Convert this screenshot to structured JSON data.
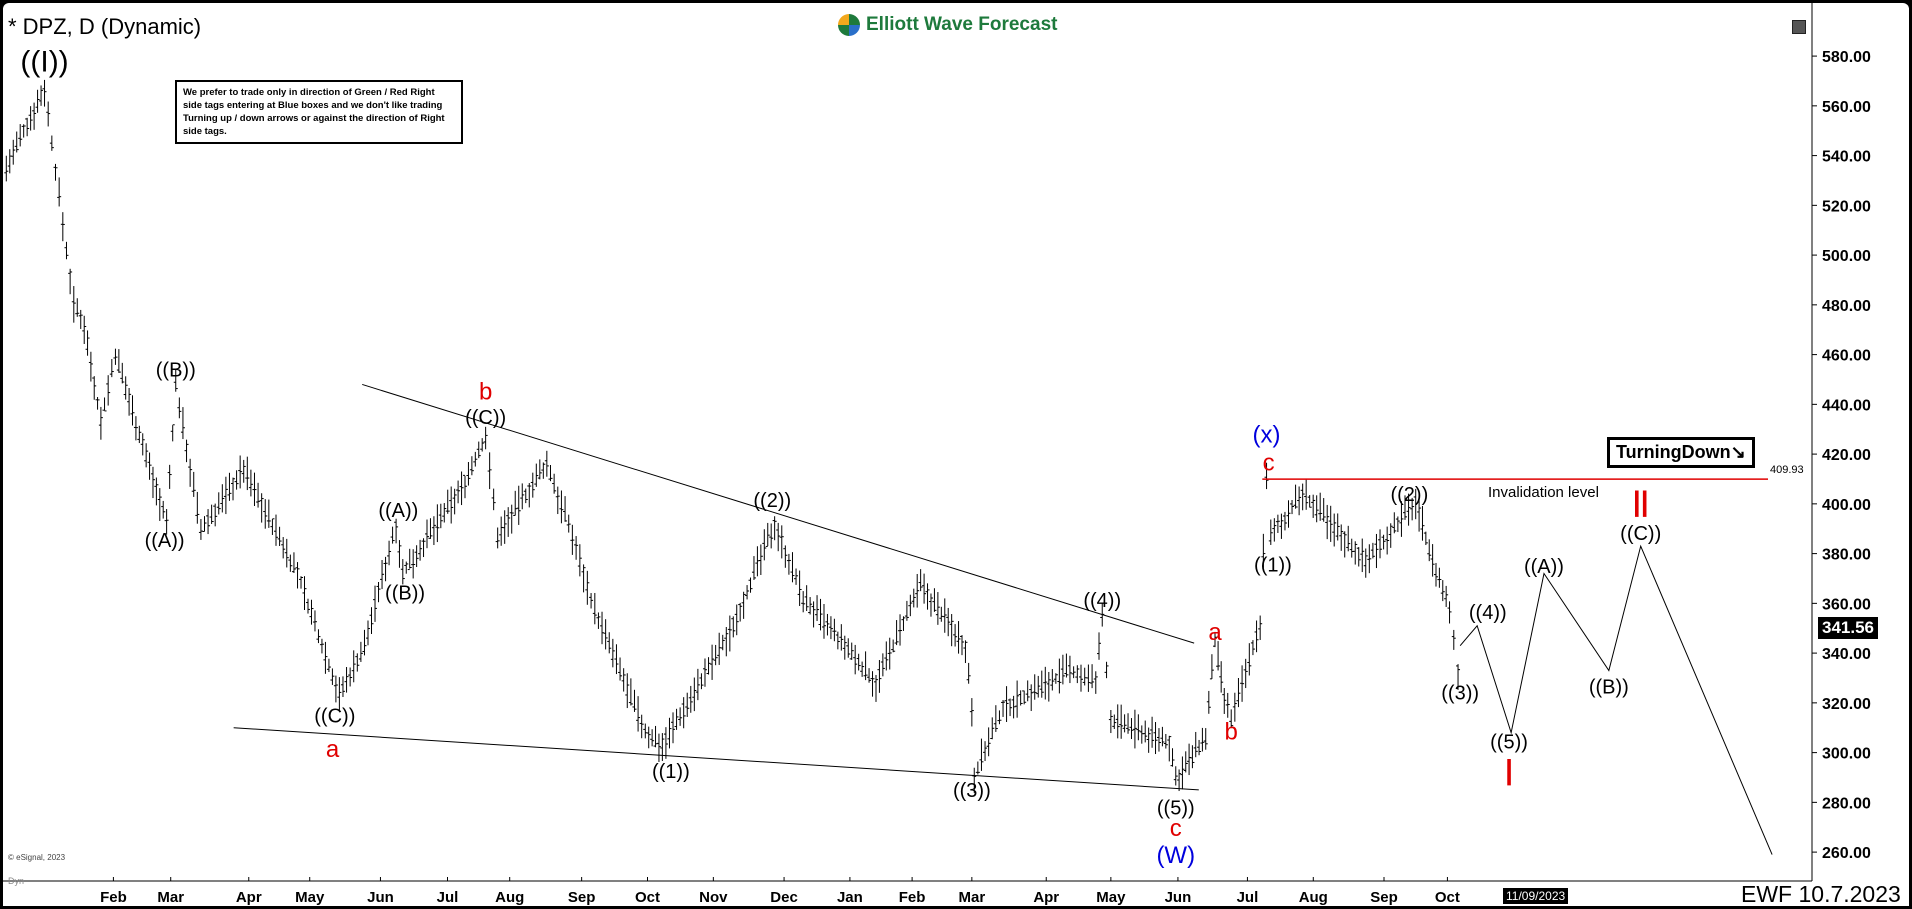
{
  "header": {
    "title": "* DPZ, D (Dynamic)",
    "logo_text": "Elliott Wave Forecast",
    "footer_stamp": "EWF 10.7.2023",
    "copyright": "© eSignal, 2023",
    "dyn_label": "Dyn"
  },
  "note": "We prefer to trade only in direction of Green / Red Right side tags entering at Blue boxes and we don't like trading Turning up / down arrows or against the direction of Right side tags.",
  "tag": {
    "label": "TurningDown",
    "arrow": "↘"
  },
  "invalidation": {
    "label": "Invalidation level",
    "value": "409.93",
    "price": 409.93,
    "color": "#e00000"
  },
  "current_price": {
    "label": "341.56",
    "price": 341.56
  },
  "cursor_date": "11/09/2023",
  "colors": {
    "label_black": "#000000",
    "label_red": "#e00000",
    "label_blue": "#0000dd",
    "bars": "#000000"
  },
  "chart_data": {
    "type": "bar",
    "style": "ohlc",
    "symbol": "DPZ",
    "interval": "D",
    "ylim": [
      255,
      590
    ],
    "y_ticks": [
      "260.00",
      "280.00",
      "300.00",
      "320.00",
      "340.00",
      "360.00",
      "380.00",
      "400.00",
      "420.00",
      "440.00",
      "460.00",
      "480.00",
      "500.00",
      "520.00",
      "540.00",
      "560.00",
      "580.00"
    ],
    "x_ticks": [
      "Feb",
      "Mar",
      "Apr",
      "May",
      "Jun",
      "Jul",
      "Aug",
      "Sep",
      "Oct",
      "Nov",
      "Dec",
      "Jan",
      "Feb",
      "Mar",
      "Apr",
      "May",
      "Jun",
      "Jul",
      "Aug",
      "Sep",
      "Oct"
    ],
    "grid": false,
    "price_path": [
      [
        "2021-12-12",
        535
      ],
      [
        "2021-12-30",
        567
      ],
      [
        "2022-01-13",
        480
      ],
      [
        "2022-01-18",
        472
      ],
      [
        "2022-01-26",
        433
      ],
      [
        "2022-02-02",
        460
      ],
      [
        "2022-02-27",
        392
      ],
      [
        "2022-03-03",
        448
      ],
      [
        "2022-03-13",
        389
      ],
      [
        "2022-03-30",
        414
      ],
      [
        "2022-04-25",
        372
      ],
      [
        "2022-05-14",
        323
      ],
      [
        "2022-05-25",
        343
      ],
      [
        "2022-06-08",
        392
      ],
      [
        "2022-06-11",
        372
      ],
      [
        "2022-07-08",
        406
      ],
      [
        "2022-07-20",
        427
      ],
      [
        "2022-07-26",
        387
      ],
      [
        "2022-08-17",
        416
      ],
      [
        "2022-08-28",
        387
      ],
      [
        "2022-09-07",
        357
      ],
      [
        "2022-09-30",
        308
      ],
      [
        "2022-10-08",
        303
      ],
      [
        "2022-11-08",
        348
      ],
      [
        "2022-11-27",
        392
      ],
      [
        "2022-12-10",
        362
      ],
      [
        "2023-01-14",
        328
      ],
      [
        "2023-02-05",
        367
      ],
      [
        "2023-02-26",
        343
      ],
      [
        "2023-03-01",
        318
      ],
      [
        "2023-03-02",
        291
      ],
      [
        "2023-03-14",
        318
      ],
      [
        "2023-04-12",
        333
      ],
      [
        "2023-04-24",
        328
      ],
      [
        "2023-04-27",
        355
      ],
      [
        "2023-05-01",
        313
      ],
      [
        "2023-05-28",
        304
      ],
      [
        "2023-05-31",
        289
      ],
      [
        "2023-06-13",
        306
      ],
      [
        "2023-06-17",
        345
      ],
      [
        "2023-06-21",
        321
      ],
      [
        "2023-06-24",
        313
      ],
      [
        "2023-07-07",
        352
      ],
      [
        "2023-07-10",
        410
      ],
      [
        "2023-07-12",
        387
      ],
      [
        "2023-07-27",
        404
      ],
      [
        "2023-08-24",
        377
      ],
      [
        "2023-09-16",
        401
      ],
      [
        "2023-09-24",
        377
      ],
      [
        "2023-10-02",
        357
      ],
      [
        "2023-10-06",
        333
      ],
      [
        "2023-10-07",
        342
      ]
    ],
    "projection": [
      [
        "2023-10-07",
        343
      ],
      [
        "2023-10-15",
        351
      ],
      [
        "2023-10-31",
        308
      ],
      [
        "2023-11-15",
        372
      ],
      [
        "2023-12-15",
        333
      ],
      [
        "2023-12-30",
        383
      ],
      [
        "2024-02-28",
        259
      ]
    ],
    "trendlines": [
      {
        "from": [
          "2022-05-24",
          448
        ],
        "to": [
          "2023-06-08",
          344
        ]
      },
      {
        "from": [
          "2022-03-26",
          310
        ],
        "to": [
          "2023-06-10",
          285
        ]
      }
    ],
    "annotations": [
      {
        "text": "((I))",
        "date": "2021-12-30",
        "price": 576.6,
        "color": "black",
        "big": true
      },
      {
        "text": "((B))",
        "date": "2022-03-03",
        "price": 454,
        "color": "black"
      },
      {
        "text": "((A))",
        "date": "2022-02-26",
        "price": 385.4,
        "color": "black"
      },
      {
        "text": "b",
        "date": "2022-07-20",
        "price": 444.7,
        "color": "red"
      },
      {
        "text": "((C))",
        "date": "2022-07-20",
        "price": 435,
        "color": "black"
      },
      {
        "text": "((A))",
        "date": "2022-06-09",
        "price": 397.6,
        "color": "black"
      },
      {
        "text": "((B))",
        "date": "2022-06-12",
        "price": 364.3,
        "color": "black"
      },
      {
        "text": "((C))",
        "date": "2022-05-12",
        "price": 315,
        "color": "black"
      },
      {
        "text": "a",
        "date": "2022-05-11",
        "price": 301,
        "color": "red"
      },
      {
        "text": "((2))",
        "date": "2022-11-26",
        "price": 401.6,
        "color": "black"
      },
      {
        "text": "((1))",
        "date": "2022-10-12",
        "price": 292.7,
        "color": "black"
      },
      {
        "text": "((4))",
        "date": "2023-04-27",
        "price": 361.4,
        "color": "black"
      },
      {
        "text": "((3))",
        "date": "2023-03-01",
        "price": 284.9,
        "color": "black"
      },
      {
        "text": "((5))",
        "date": "2023-05-31",
        "price": 278,
        "color": "black"
      },
      {
        "text": "c",
        "date": "2023-05-31",
        "price": 269.2,
        "color": "red"
      },
      {
        "text": "(W)",
        "date": "2023-05-31",
        "price": 258.4,
        "color": "blue"
      },
      {
        "text": "a",
        "date": "2023-06-17",
        "price": 348.1,
        "color": "red"
      },
      {
        "text": "b",
        "date": "2023-06-24",
        "price": 308,
        "color": "red"
      },
      {
        "text": "(x)",
        "date": "2023-07-10",
        "price": 427.5,
        "color": "blue"
      },
      {
        "text": "c",
        "date": "2023-07-11",
        "price": 416.3,
        "color": "red"
      },
      {
        "text": "((1))",
        "date": "2023-07-13",
        "price": 375.6,
        "color": "black"
      },
      {
        "text": "((2))",
        "date": "2023-09-13",
        "price": 404,
        "color": "black"
      },
      {
        "text": "((4))",
        "date": "2023-10-20",
        "price": 356.5,
        "color": "black"
      },
      {
        "text": "((3))",
        "date": "2023-10-07",
        "price": 324.1,
        "color": "black"
      },
      {
        "text": "((5))",
        "date": "2023-10-30",
        "price": 304.5,
        "color": "black"
      },
      {
        "text": "I",
        "date": "2023-10-30",
        "price": 292.3,
        "color": "red"
      },
      {
        "text": "((A))",
        "date": "2023-11-15",
        "price": 375.1,
        "color": "black"
      },
      {
        "text": "((B))",
        "date": "2023-12-15",
        "price": 326.6,
        "color": "black"
      },
      {
        "text": "((C))",
        "date": "2023-12-30",
        "price": 388.3,
        "color": "black"
      },
      {
        "text": "II",
        "date": "2023-12-30",
        "price": 400.1,
        "color": "red"
      }
    ]
  }
}
